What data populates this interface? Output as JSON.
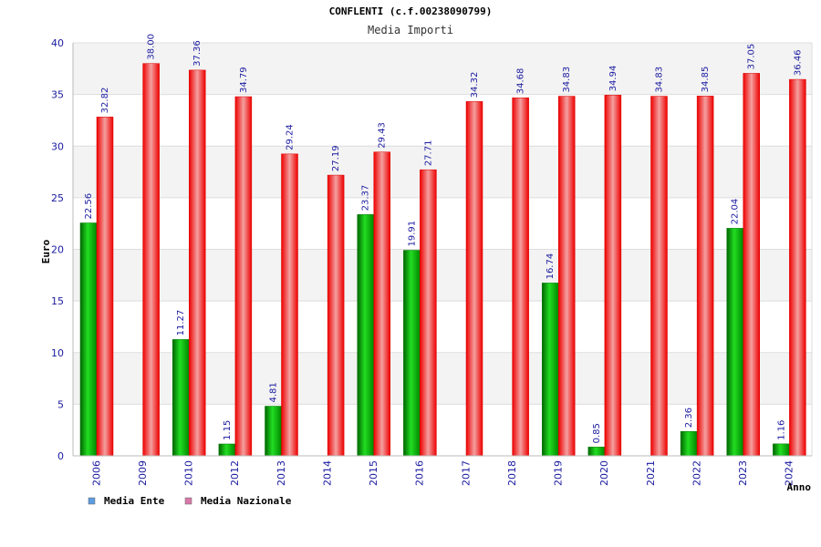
{
  "chart_data": {
    "type": "bar",
    "title": "CONFLENTI (c.f.00238090799)",
    "subtitle": "Media Importi",
    "ylabel": "Euro",
    "xlabel": "Anno",
    "ylim": [
      0,
      40
    ],
    "yticks": [
      0,
      5,
      10,
      15,
      20,
      25,
      30,
      35,
      40
    ],
    "grid": true,
    "legend_position": "bottom-left",
    "categories": [
      "2006",
      "2009",
      "2010",
      "2012",
      "2013",
      "2014",
      "2015",
      "2016",
      "2017",
      "2018",
      "2019",
      "2020",
      "2021",
      "2022",
      "2023",
      "2024"
    ],
    "series": [
      {
        "name": "Media Ente",
        "color": "#00aa00",
        "legend_color": "#5b9be0",
        "values": [
          22.56,
          null,
          11.27,
          1.15,
          4.81,
          null,
          23.37,
          19.91,
          null,
          null,
          16.74,
          0.85,
          null,
          2.36,
          22.04,
          1.16
        ],
        "labels": [
          "22.56",
          "",
          "11.27",
          "1.15",
          "4.81",
          "",
          "23.37",
          "19.91",
          "",
          "",
          "16.74",
          "0.85",
          "",
          "2.36",
          "22.04",
          "1.16"
        ]
      },
      {
        "name": "Media Nazionale",
        "color": "#ee1111",
        "legend_color": "#d878a8",
        "values": [
          32.82,
          38.0,
          37.36,
          34.79,
          29.24,
          27.19,
          29.43,
          27.71,
          34.32,
          34.68,
          34.83,
          34.94,
          34.83,
          34.85,
          37.05,
          36.46
        ],
        "labels": [
          "32.82",
          "38.00",
          "37.36",
          "34.79",
          "29.24",
          "27.19",
          "29.43",
          "27.71",
          "34.32",
          "34.68",
          "34.83",
          "34.94",
          "34.83",
          "34.85",
          "37.05",
          "36.46"
        ]
      }
    ]
  }
}
